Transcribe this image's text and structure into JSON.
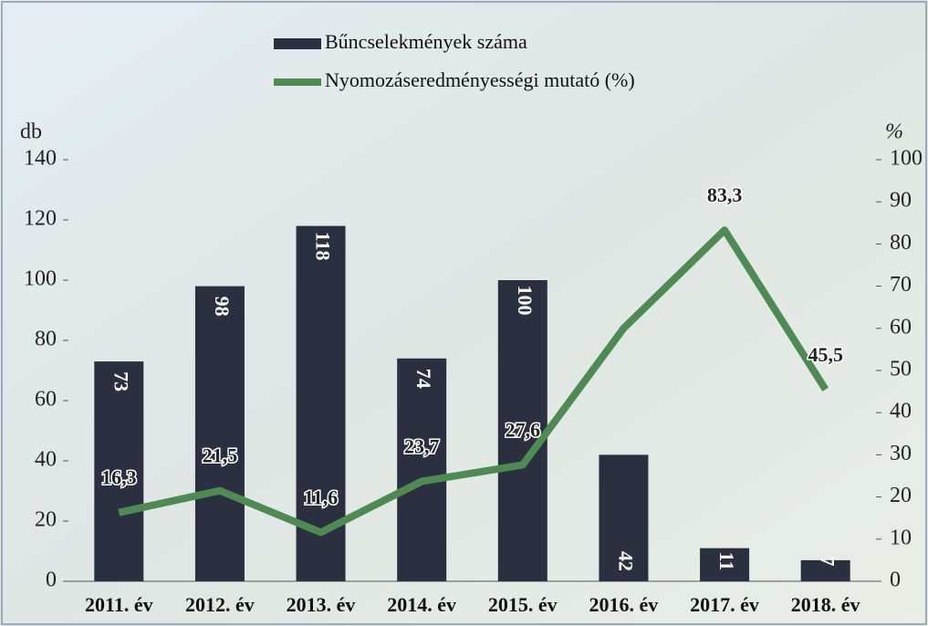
{
  "chart_data": {
    "type": "bar",
    "categories": [
      "2011. év",
      "2012. év",
      "2013. év",
      "2014. év",
      "2015. év",
      "2016. év",
      "2017. év",
      "2018. év"
    ],
    "y_label": "db",
    "y2_label": "%",
    "ylim": [
      0,
      140
    ],
    "yticks": [
      0,
      20,
      40,
      60,
      80,
      100,
      120,
      140
    ],
    "y2lim": [
      0,
      100
    ],
    "y2ticks": [
      0,
      10,
      20,
      30,
      40,
      50,
      60,
      70,
      80,
      90,
      100
    ],
    "series": [
      {
        "name": "Bűncselekmények száma",
        "type": "bar",
        "color": "#2b3040",
        "values": [
          73,
          98,
          118,
          74,
          100,
          42,
          11,
          7
        ]
      },
      {
        "name": "Nyomozáseredményességi mutató (%)",
        "type": "line",
        "axis": "y2",
        "color": "#4f8a55",
        "values": [
          16.3,
          21.5,
          11.6,
          23.7,
          27.6,
          60,
          83.3,
          45.5
        ],
        "value_labels": [
          "16,3",
          "21,5",
          "11,6",
          "23,7",
          "27,6",
          null,
          "83,3",
          "45,5"
        ]
      }
    ]
  }
}
